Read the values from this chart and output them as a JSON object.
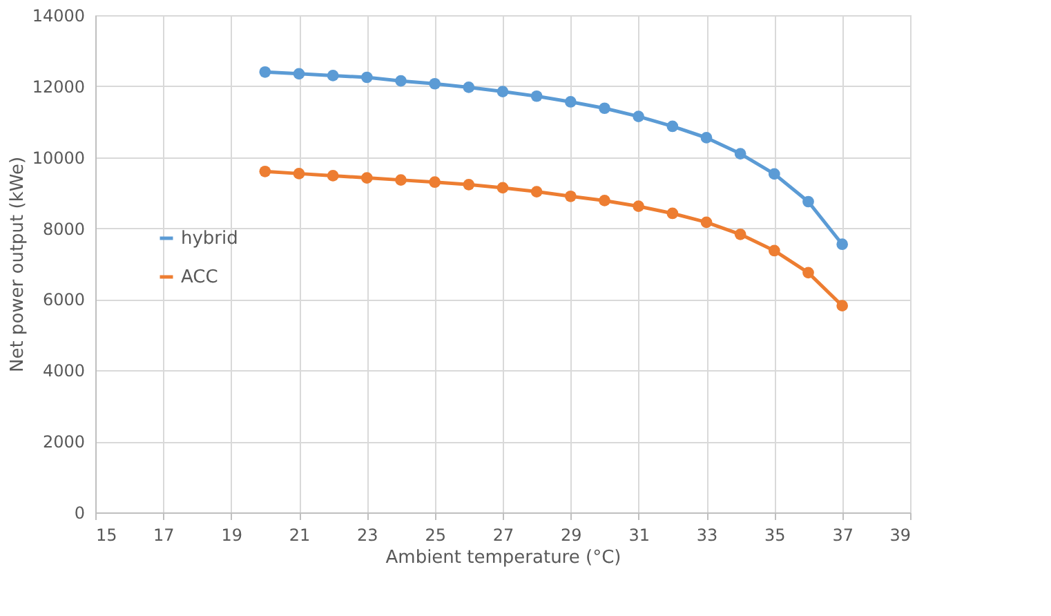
{
  "chart_data": {
    "type": "line",
    "xlabel": "Ambient temperature (°C)",
    "ylabel": "Net power output (kWe)",
    "x": [
      20,
      21,
      22,
      23,
      24,
      25,
      26,
      27,
      28,
      29,
      30,
      31,
      32,
      33,
      34,
      35,
      36,
      37
    ],
    "series": [
      {
        "name": "hybrid",
        "color": "#5b9bd5",
        "values": [
          12400,
          12350,
          12300,
          12250,
          12150,
          12070,
          11970,
          11850,
          11720,
          11560,
          11380,
          11150,
          10870,
          10550,
          10100,
          9530,
          8750,
          7550
        ]
      },
      {
        "name": "ACC",
        "color": "#ed7d31",
        "values": [
          9600,
          9540,
          9480,
          9420,
          9360,
          9300,
          9230,
          9140,
          9030,
          8900,
          8780,
          8620,
          8420,
          8170,
          7830,
          7370,
          6750,
          5820
        ]
      }
    ],
    "xlim": [
      15,
      39
    ],
    "xticks": [
      15,
      17,
      19,
      21,
      23,
      25,
      27,
      29,
      31,
      33,
      35,
      37,
      39
    ],
    "ylim": [
      0,
      14000
    ],
    "yticks": [
      0,
      2000,
      4000,
      6000,
      8000,
      10000,
      12000,
      14000
    ],
    "grid": true,
    "legend": "left",
    "marker": "circle",
    "line_style": "solid"
  }
}
